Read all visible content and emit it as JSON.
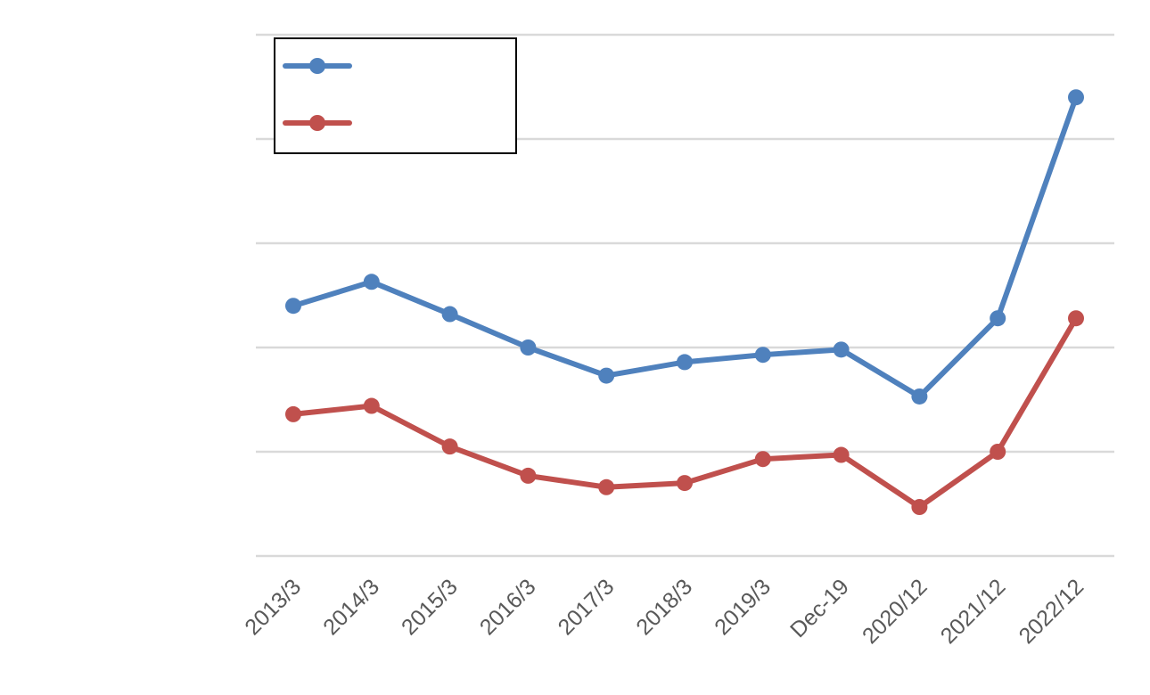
{
  "chart_data": {
    "type": "line",
    "title": "",
    "categories": [
      "2013/3",
      "2014/3",
      "2015/3",
      "2016/3",
      "2017/3",
      "2018/3",
      "2019/3",
      "Dec-19",
      "2020/12",
      "2021/12",
      "2022/12"
    ],
    "series": [
      {
        "values": [
          0.49,
          0.513,
          0.482,
          0.45,
          0.423,
          0.436,
          0.443,
          0.448,
          0.403,
          0.478,
          0.69
        ],
        "color": "#4F81BD"
      },
      {
        "values": [
          0.386,
          0.394,
          0.355,
          0.327,
          0.316,
          0.32,
          0.343,
          0.347,
          0.297,
          0.35,
          0.478
        ],
        "color": "#C0504D"
      }
    ],
    "ylim": [
      0.25,
      0.75
    ],
    "ytick_step": 0.1,
    "grid": true,
    "legend": "top-left",
    "xlabel": "",
    "ylabel": ""
  }
}
